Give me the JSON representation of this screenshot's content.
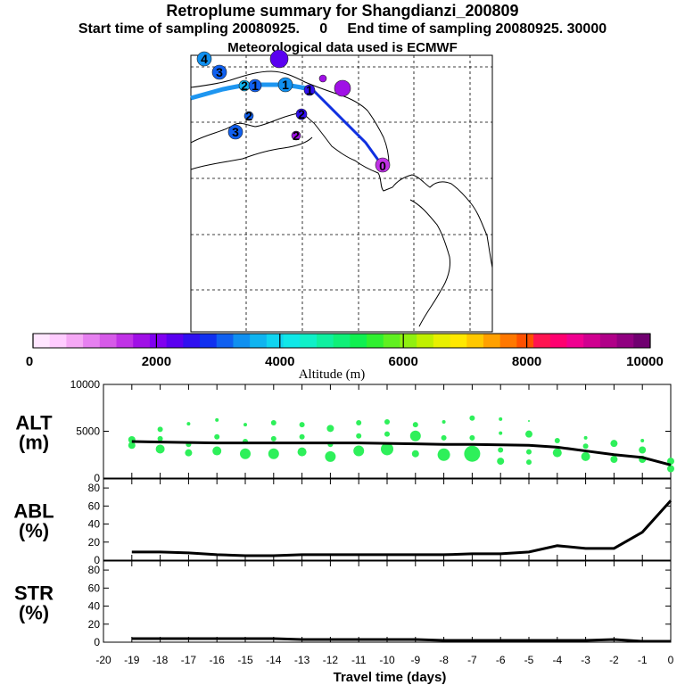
{
  "header": {
    "title": "Retroplume summary for Shangdianzi_200809",
    "subtitle": "Start time of sampling 20080925.     0     End time of sampling 20080925. 30000",
    "met_line": "Meteorological data used is ECMWF"
  },
  "colorbar": {
    "xlabel": "Altitude  (m)",
    "ticks": [
      "0",
      "2000",
      "4000",
      "6000",
      "8000",
      "10000"
    ],
    "range": [
      0,
      10000
    ],
    "colors": [
      "#ffe6ff",
      "#ffccff",
      "#f5a8f5",
      "#e680f0",
      "#d65ae8",
      "#c032e6",
      "#a010e6",
      "#8000f0",
      "#5a00f0",
      "#3010f0",
      "#1030f0",
      "#1060f0",
      "#1090f0",
      "#10b4f0",
      "#10d4f0",
      "#10e8e8",
      "#10f0c8",
      "#10f0a0",
      "#10f078",
      "#10f050",
      "#30f030",
      "#60f020",
      "#90f010",
      "#c0f000",
      "#e8f000",
      "#ffe800",
      "#ffc800",
      "#ffa000",
      "#ff7800",
      "#ff5000",
      "#ff1450",
      "#ff0070",
      "#f00090",
      "#d00090",
      "#b00088",
      "#900080",
      "#700070"
    ]
  },
  "chart_data": [
    {
      "type": "scatter",
      "title": "ALT",
      "ylabel": "ALT (m)",
      "ylabel_line1": "ALT",
      "ylabel_line2": "(m)",
      "xlabel": "Travel time (days)",
      "xlim": [
        -20,
        0
      ],
      "ylim": [
        0,
        10000
      ],
      "y_ticks": [
        "0",
        "5000",
        "10000"
      ],
      "mean_line": {
        "x": [
          -19,
          -18,
          -17,
          -16,
          -15,
          -14,
          -13,
          -12,
          -11,
          -10,
          -9,
          -8,
          -7,
          -6,
          -5,
          -4,
          -3,
          -2,
          -1,
          0
        ],
        "y": [
          3900,
          3850,
          3800,
          3750,
          3750,
          3750,
          3750,
          3750,
          3750,
          3700,
          3650,
          3600,
          3600,
          3550,
          3500,
          3300,
          2900,
          2500,
          2200,
          1400
        ]
      },
      "points": [
        {
          "x": -19,
          "y": 3500,
          "s": 4
        },
        {
          "x": -19,
          "y": 4100,
          "s": 4
        },
        {
          "x": -18,
          "y": 3100,
          "s": 5
        },
        {
          "x": -18,
          "y": 4200,
          "s": 3
        },
        {
          "x": -18,
          "y": 5200,
          "s": 3
        },
        {
          "x": -17,
          "y": 2700,
          "s": 4
        },
        {
          "x": -17,
          "y": 3600,
          "s": 3
        },
        {
          "x": -17,
          "y": 5800,
          "s": 2
        },
        {
          "x": -16,
          "y": 2900,
          "s": 5
        },
        {
          "x": -16,
          "y": 4400,
          "s": 3
        },
        {
          "x": -16,
          "y": 6200,
          "s": 2
        },
        {
          "x": -15,
          "y": 2600,
          "s": 6
        },
        {
          "x": -15,
          "y": 3900,
          "s": 3
        },
        {
          "x": -15,
          "y": 5700,
          "s": 2
        },
        {
          "x": -14,
          "y": 2600,
          "s": 6
        },
        {
          "x": -14,
          "y": 4200,
          "s": 3
        },
        {
          "x": -14,
          "y": 5900,
          "s": 3
        },
        {
          "x": -13,
          "y": 2800,
          "s": 5
        },
        {
          "x": -13,
          "y": 4400,
          "s": 3
        },
        {
          "x": -13,
          "y": 5700,
          "s": 3
        },
        {
          "x": -12,
          "y": 2300,
          "s": 6
        },
        {
          "x": -12,
          "y": 3600,
          "s": 3
        },
        {
          "x": -12,
          "y": 5300,
          "s": 4
        },
        {
          "x": -11,
          "y": 2900,
          "s": 6
        },
        {
          "x": -11,
          "y": 4500,
          "s": 3
        },
        {
          "x": -11,
          "y": 5900,
          "s": 3
        },
        {
          "x": -10,
          "y": 3100,
          "s": 7
        },
        {
          "x": -10,
          "y": 4700,
          "s": 3
        },
        {
          "x": -10,
          "y": 6000,
          "s": 3
        },
        {
          "x": -9,
          "y": 2600,
          "s": 4
        },
        {
          "x": -9,
          "y": 4500,
          "s": 6
        },
        {
          "x": -9,
          "y": 5700,
          "s": 3
        },
        {
          "x": -8,
          "y": 2500,
          "s": 7
        },
        {
          "x": -8,
          "y": 4300,
          "s": 3
        },
        {
          "x": -8,
          "y": 6000,
          "s": 2
        },
        {
          "x": -7,
          "y": 2600,
          "s": 9
        },
        {
          "x": -7,
          "y": 4300,
          "s": 3
        },
        {
          "x": -7,
          "y": 6400,
          "s": 3
        },
        {
          "x": -6,
          "y": 1800,
          "s": 4
        },
        {
          "x": -6,
          "y": 3000,
          "s": 3
        },
        {
          "x": -6,
          "y": 4800,
          "s": 2
        },
        {
          "x": -6,
          "y": 6300,
          "s": 2
        },
        {
          "x": -5,
          "y": 1700,
          "s": 3
        },
        {
          "x": -5,
          "y": 2800,
          "s": 3
        },
        {
          "x": -5,
          "y": 4700,
          "s": 4
        },
        {
          "x": -5,
          "y": 6100,
          "s": 1
        },
        {
          "x": -4,
          "y": 2700,
          "s": 5
        },
        {
          "x": -4,
          "y": 4000,
          "s": 3
        },
        {
          "x": -3,
          "y": 2300,
          "s": 5
        },
        {
          "x": -3,
          "y": 3400,
          "s": 3
        },
        {
          "x": -3,
          "y": 4300,
          "s": 2
        },
        {
          "x": -2,
          "y": 2000,
          "s": 4
        },
        {
          "x": -2,
          "y": 3700,
          "s": 4
        },
        {
          "x": -1,
          "y": 2000,
          "s": 4
        },
        {
          "x": -1,
          "y": 3000,
          "s": 4
        },
        {
          "x": -1,
          "y": 4000,
          "s": 2
        },
        {
          "x": 0,
          "y": 1000,
          "s": 4
        },
        {
          "x": 0,
          "y": 1800,
          "s": 4
        }
      ]
    },
    {
      "type": "line",
      "title": "ABL",
      "ylabel": "ABL (%)",
      "ylabel_line1": "ABL",
      "ylabel_line2": "(%)",
      "xlim": [
        -20,
        0
      ],
      "ylim": [
        0,
        90
      ],
      "y_ticks": [
        "0",
        "20",
        "40",
        "60",
        "80"
      ],
      "x": [
        -19,
        -18,
        -17,
        -16,
        -15,
        -14,
        -13,
        -12,
        -11,
        -10,
        -9,
        -8,
        -7,
        -6,
        -5,
        -4,
        -3,
        -2,
        -1,
        0
      ],
      "y": [
        9,
        9,
        8,
        6,
        5,
        5,
        6,
        6,
        6,
        6,
        6,
        6,
        7,
        7,
        9,
        16,
        13,
        13,
        31,
        66
      ]
    },
    {
      "type": "line",
      "title": "STR",
      "ylabel": "STR (%)",
      "ylabel_line1": "STR",
      "ylabel_line2": "(%)",
      "xlabel": "Travel time (days)",
      "xlim": [
        -20,
        0
      ],
      "ylim": [
        0,
        90
      ],
      "y_ticks": [
        "0",
        "20",
        "40",
        "60",
        "80"
      ],
      "x_ticks": [
        "-20",
        "-19",
        "-18",
        "-17",
        "-16",
        "-15",
        "-14",
        "-13",
        "-12",
        "-11",
        "-10",
        "-9",
        "-8",
        "-7",
        "-6",
        "-5",
        "-4",
        "-3",
        "-2",
        "-1",
        "0"
      ],
      "x": [
        -19,
        -18,
        -17,
        -16,
        -15,
        -14,
        -13,
        -12,
        -11,
        -10,
        -9,
        -8,
        -7,
        -6,
        -5,
        -4,
        -3,
        -2,
        -1,
        0
      ],
      "y": [
        4,
        4,
        4,
        4,
        4,
        4,
        3,
        3,
        3,
        3,
        3,
        2,
        2,
        2,
        2,
        2,
        2,
        3,
        1,
        1
      ]
    }
  ],
  "map": {
    "track_labels": [
      "4",
      "3",
      "2",
      "1",
      "1",
      "1",
      "2",
      "2",
      "3",
      "2",
      "0"
    ]
  }
}
